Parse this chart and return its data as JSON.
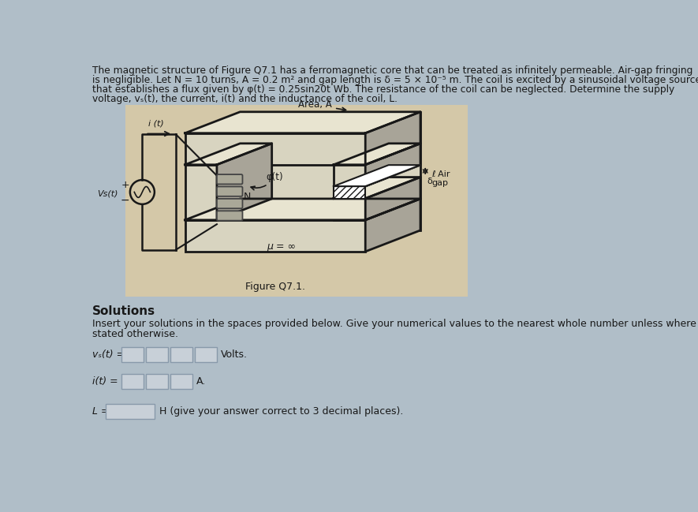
{
  "bg_color": "#b0bec8",
  "text_color": "#111111",
  "para_text_line1": "The magnetic structure of Figure Q7.1 has a ferromagnetic core that can be treated as infinitely permeable. Air-gap fringing",
  "para_text_line2": "is negligible. Let N = 10 turns, A = 0.2 m² and gap length is δ = 5 × 10⁻⁵ m. The coil is excited by a sinusoidal voltage source",
  "para_text_line3": "that establishes a flux given by φ(t) = 0.25sin20t Wb. The resistance of the coil can be neglected. Determine the supply",
  "para_text_line4": "voltage, vₛ(t), the current, i(t) and the inductance of the coil, L.",
  "figure_caption": "Figure Q7.1.",
  "solutions_title": "Solutions",
  "solutions_text_line1": "Insert your solutions in the spaces provided below. Give your numerical values to the nearest whole number unless where",
  "solutions_text_line2": "stated otherwise.",
  "vs_label": "vₛ(t) =",
  "vs_unit": "Volts.",
  "i_label": "i(t) =",
  "i_unit": "A.",
  "L_label": "L =",
  "L_unit": "H (give your answer correct to 3 decimal places).",
  "diagram_bg": "#d4c8a8",
  "core_color": "#c8c0a0",
  "core_dark": "#181818",
  "input_box_color": "#c8d0d8",
  "area_label": "Area, A",
  "gap_label": "δ",
  "air_gap_label": "ℓ Air\ngap",
  "phi_label": "φ(t)",
  "N_label": "N",
  "mu_label": "μ = ∞",
  "i_diagram_label": "i (t)",
  "vs_diagram_label": "Vs(t)"
}
